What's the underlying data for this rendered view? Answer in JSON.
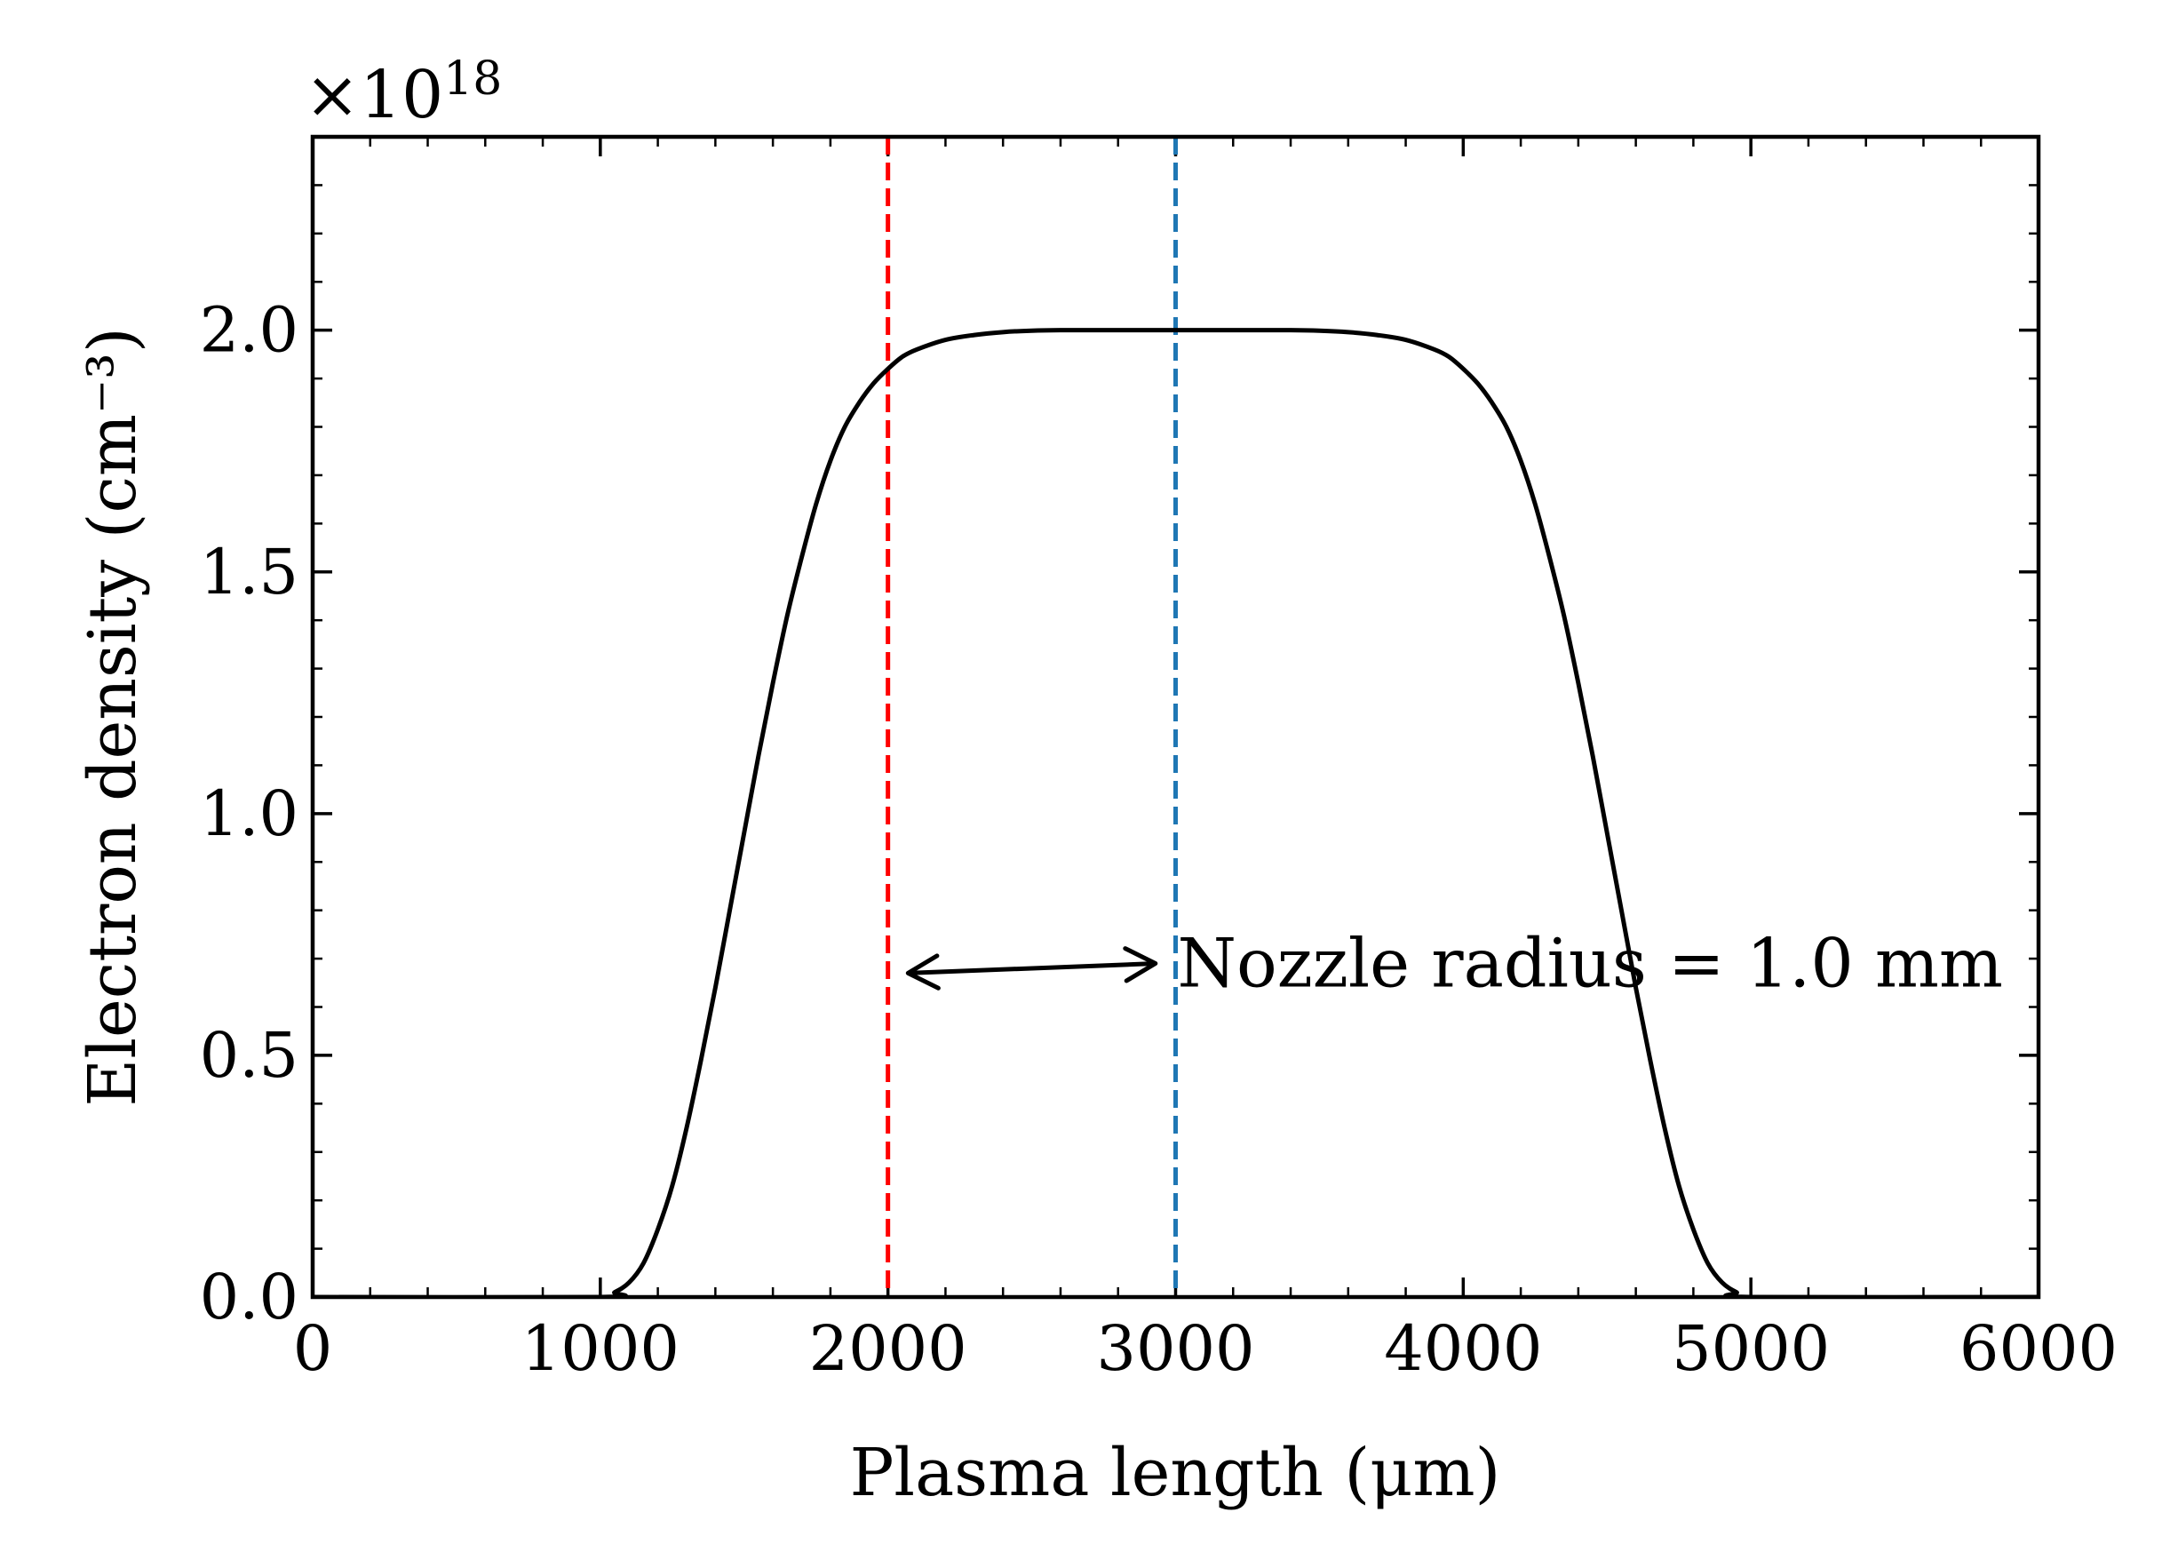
{
  "chart_data": {
    "type": "line",
    "xlabel": "Plasma length (μm)",
    "ylabel": "Electron density (cm⁻³)",
    "y_multiplier": "×10",
    "y_multiplier_exp": "18",
    "xlim": [
      0,
      6000
    ],
    "ylim": [
      0,
      2.4
    ],
    "x_ticks": [
      0,
      1000,
      2000,
      3000,
      4000,
      5000,
      6000
    ],
    "x_tick_labels": [
      "0",
      "1000",
      "2000",
      "3000",
      "4000",
      "5000",
      "6000"
    ],
    "y_ticks": [
      0.0,
      0.5,
      1.0,
      1.5,
      2.0
    ],
    "y_tick_labels": [
      "0.0",
      "0.5",
      "1.0",
      "1.5",
      "2.0"
    ],
    "grid": false,
    "series": [
      {
        "color": "#000000",
        "x": [
          0,
          1000,
          1050,
          1100,
          1150,
          1200,
          1250,
          1300,
          1350,
          1400,
          1450,
          1500,
          1550,
          1600,
          1650,
          1700,
          1750,
          1800,
          1850,
          1900,
          1950,
          2000,
          2050,
          2100,
          2200,
          2300,
          2400,
          2500,
          2600,
          2800,
          3000,
          3200,
          3400,
          3500,
          3600,
          3700,
          3800,
          3900,
          3950,
          4000,
          4050,
          4100,
          4150,
          4200,
          4250,
          4300,
          4350,
          4400,
          4450,
          4500,
          4550,
          4600,
          4650,
          4700,
          4750,
          4800,
          4850,
          4900,
          4950,
          5000,
          6000
        ],
        "y": [
          0.0,
          0.0,
          0.01,
          0.03,
          0.07,
          0.14,
          0.23,
          0.35,
          0.49,
          0.64,
          0.8,
          0.96,
          1.12,
          1.27,
          1.41,
          1.53,
          1.64,
          1.73,
          1.8,
          1.85,
          1.89,
          1.92,
          1.945,
          1.96,
          1.98,
          1.99,
          1.996,
          1.999,
          2.0,
          2.0,
          2.0,
          2.0,
          2.0,
          1.999,
          1.996,
          1.99,
          1.98,
          1.96,
          1.945,
          1.92,
          1.89,
          1.85,
          1.8,
          1.73,
          1.64,
          1.53,
          1.41,
          1.27,
          1.12,
          0.96,
          0.8,
          0.64,
          0.49,
          0.35,
          0.23,
          0.14,
          0.07,
          0.03,
          0.01,
          0.0,
          0.0
        ]
      }
    ],
    "vlines": [
      {
        "x": 2000,
        "color": "#ff0000",
        "style": "dashed"
      },
      {
        "x": 3000,
        "color": "#1f77b4",
        "style": "dashed"
      }
    ],
    "annotation": {
      "text": "Nozzle radius = 1.0 mm",
      "arrow_from": [
        2070,
        0.67
      ],
      "arrow_to": [
        2930,
        0.69
      ]
    }
  }
}
